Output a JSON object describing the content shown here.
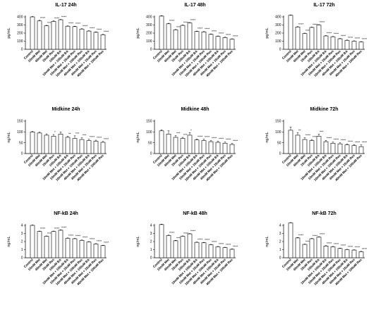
{
  "categories": [
    "Control",
    "10mM Met",
    "40mM Met",
    "25uM Res",
    "100uM BA",
    "10mM Met + 100uM BA",
    "10mM Met + 25uM Res",
    "10mM Met + 100uM Res",
    "40mM Met + 100uM BA",
    "40mM Met + 25uM Res",
    "40mM Met + 100uM Res"
  ],
  "chart_data": [
    {
      "type": "bar",
      "title": "IL-17 24h",
      "ylabel": "pg/mL",
      "ylim": [
        0,
        400
      ],
      "yticks": [
        0,
        100,
        200,
        300,
        400
      ],
      "values": [
        400,
        350,
        290,
        345,
        365,
        285,
        280,
        250,
        225,
        210,
        180
      ],
      "errors": [
        5,
        8,
        6,
        8,
        5,
        5,
        5,
        5,
        5,
        5,
        5
      ],
      "significance": [
        "",
        "****",
        "****",
        "****",
        "****",
        "****",
        "****",
        "****",
        "****",
        "****",
        "****"
      ]
    },
    {
      "type": "bar",
      "title": "IL-17 48h",
      "ylabel": "pg/mL",
      "ylim": [
        0,
        400
      ],
      "yticks": [
        0,
        100,
        200,
        300,
        400
      ],
      "values": [
        410,
        315,
        240,
        295,
        325,
        220,
        215,
        185,
        160,
        145,
        125
      ],
      "errors": [
        5,
        6,
        5,
        6,
        6,
        5,
        5,
        5,
        5,
        5,
        5
      ],
      "significance": [
        "",
        "****",
        "****",
        "****",
        "****",
        "****",
        "****",
        "****",
        "****",
        "****",
        "****"
      ]
    },
    {
      "type": "bar",
      "title": "IL-17 72h",
      "ylabel": "pg/mL",
      "ylim": [
        0,
        400
      ],
      "yticks": [
        0,
        100,
        200,
        300,
        400
      ],
      "values": [
        420,
        275,
        195,
        270,
        300,
        165,
        155,
        130,
        110,
        100,
        90
      ],
      "errors": [
        5,
        5,
        5,
        5,
        5,
        5,
        5,
        5,
        5,
        5,
        5
      ],
      "significance": [
        "",
        "****",
        "****",
        "****",
        "****",
        "****",
        "****",
        "****",
        "****",
        "****",
        "****"
      ]
    },
    {
      "type": "bar",
      "title": "Midkine 24h",
      "ylabel": "ng/mL",
      "ylim": [
        0,
        150
      ],
      "yticks": [
        0,
        50,
        100,
        150
      ],
      "values": [
        100,
        95,
        85,
        80,
        90,
        75,
        70,
        65,
        60,
        57,
        52
      ],
      "errors": [
        3,
        4,
        6,
        8,
        10,
        5,
        12,
        8,
        6,
        5,
        4
      ],
      "significance": [
        "",
        "",
        "",
        "*",
        "",
        "**",
        "***",
        "***",
        "****",
        "****",
        "****"
      ]
    },
    {
      "type": "bar",
      "title": "Midkine 48h",
      "ylabel": "ng/mL",
      "ylim": [
        0,
        150
      ],
      "yticks": [
        0,
        50,
        100,
        150
      ],
      "values": [
        105,
        90,
        75,
        70,
        85,
        63,
        60,
        55,
        52,
        48,
        42
      ],
      "errors": [
        5,
        15,
        8,
        5,
        12,
        4,
        6,
        5,
        5,
        5,
        5
      ],
      "significance": [
        "",
        "",
        "***",
        "***",
        "*",
        "****",
        "****",
        "****",
        "****",
        "****",
        "****"
      ]
    },
    {
      "type": "bar",
      "title": "Midkine 72h",
      "ylabel": "ng/mL",
      "ylim": [
        0,
        150
      ],
      "yticks": [
        0,
        50,
        100,
        150
      ],
      "values": [
        108,
        85,
        65,
        60,
        80,
        55,
        48,
        45,
        40,
        37,
        32
      ],
      "errors": [
        15,
        12,
        8,
        5,
        10,
        6,
        5,
        5,
        4,
        4,
        8
      ],
      "significance": [
        "",
        "**",
        "****",
        "****",
        "***",
        "****",
        "****",
        "****",
        "****",
        "****",
        "****"
      ]
    },
    {
      "type": "bar",
      "title": "NF-kB 24h",
      "ylabel": "ng/mL",
      "ylim": [
        0,
        4
      ],
      "yticks": [
        0,
        1,
        2,
        3,
        4
      ],
      "values": [
        4.0,
        3.25,
        2.65,
        3.25,
        3.4,
        2.4,
        2.35,
        2.15,
        1.95,
        1.7,
        1.5
      ],
      "errors": [
        0.05,
        0.05,
        0.05,
        0.05,
        0.05,
        0.05,
        0.05,
        0.05,
        0.05,
        0.05,
        0.05
      ],
      "significance": [
        "",
        "****",
        "****",
        "****",
        "****",
        "****",
        "****",
        "****",
        "****",
        "****",
        "****"
      ]
    },
    {
      "type": "bar",
      "title": "NF-kB 48h",
      "ylabel": "ng/mL",
      "ylim": [
        0,
        4
      ],
      "yticks": [
        0,
        1,
        2,
        3,
        4
      ],
      "values": [
        4.1,
        2.75,
        2.1,
        2.65,
        2.95,
        1.9,
        1.85,
        1.6,
        1.35,
        1.25,
        1.05
      ],
      "errors": [
        0.05,
        0.05,
        0.05,
        0.05,
        0.05,
        0.05,
        0.05,
        0.05,
        0.05,
        0.05,
        0.05
      ],
      "significance": [
        "",
        "****",
        "****",
        "****",
        "****",
        "****",
        "****",
        "****",
        "****",
        "****",
        "****"
      ]
    },
    {
      "type": "bar",
      "title": "NF-kB 72h",
      "ylabel": "ng/mL",
      "ylim": [
        0,
        4
      ],
      "yticks": [
        0,
        1,
        2,
        3,
        4
      ],
      "values": [
        4.3,
        2.45,
        1.65,
        2.35,
        2.55,
        1.45,
        1.35,
        1.15,
        1.0,
        0.95,
        0.75
      ],
      "errors": [
        0.05,
        0.05,
        0.05,
        0.05,
        0.05,
        0.05,
        0.05,
        0.05,
        0.05,
        0.05,
        0.05
      ],
      "significance": [
        "",
        "****",
        "****",
        "****",
        "****",
        "****",
        "****",
        "****",
        "****",
        "****",
        "****"
      ]
    }
  ]
}
